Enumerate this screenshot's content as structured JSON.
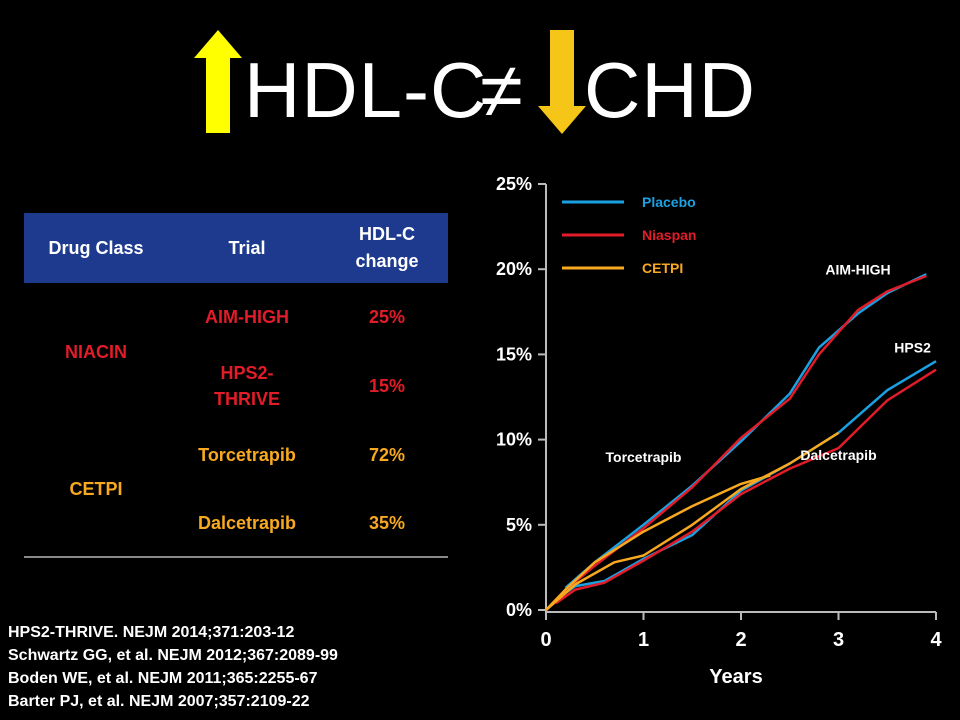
{
  "title": {
    "left": "HDL-C",
    "neq": "≠",
    "right": "CHD"
  },
  "colors": {
    "arrow": "#ffff00",
    "arrow_down": "#f5c518",
    "header_bg": "#1d3a8e",
    "niacin": "#e21c28",
    "cetp": "#f8a920",
    "placebo": "#1ba1e2",
    "niaspan": "#e21c28",
    "cetpi_line": "#f8a920"
  },
  "table": {
    "headers": [
      "Drug Class",
      "Trial",
      "HDL-C change"
    ],
    "groups": [
      {
        "drug_class": "NIACIN",
        "rows": [
          {
            "trial": "AIM-HIGH",
            "change": "25%"
          },
          {
            "trial": "HPS2-THRIVE",
            "change": "15%"
          }
        ]
      },
      {
        "drug_class": "CETPI",
        "rows": [
          {
            "trial": "Torcetrapib",
            "change": "72%"
          },
          {
            "trial": "Dalcetrapib",
            "change": "35%"
          }
        ]
      }
    ]
  },
  "references": [
    "HPS2-THRIVE. NEJM 2014;371:203-12",
    "Schwartz GG, et al. NEJM 2012;367:2089-99",
    "Boden WE, et al. NEJM 2011;365:2255-67",
    "Barter PJ, et al. NEJM 2007;357:2109-22"
  ],
  "chart_data": {
    "type": "line",
    "xlabel": "Years",
    "ylabel": "",
    "xlim": [
      0,
      4
    ],
    "ylim": [
      0,
      25
    ],
    "x_ticks": [
      "0",
      "1",
      "2",
      "3",
      "4"
    ],
    "y_ticks": [
      "0%",
      "5%",
      "10%",
      "15%",
      "20%",
      "25%"
    ],
    "legend": [
      "Placebo",
      "Niaspan",
      "CETPI"
    ],
    "legend_position": "top-left",
    "annotations": [
      {
        "text": "AIM-HIGH",
        "x": 3.2,
        "y": 19.7
      },
      {
        "text": "HPS2",
        "x": 3.76,
        "y": 15.1
      },
      {
        "text": "Torcetrapib",
        "x": 1.0,
        "y": 8.7
      },
      {
        "text": "Dalcetrapib",
        "x": 3.0,
        "y": 8.8
      }
    ],
    "series": [
      {
        "name": "Placebo",
        "trial": "AIM-HIGH",
        "color": "#1ba1e2",
        "points": [
          [
            0.2,
            1.3
          ],
          [
            0.5,
            2.8
          ],
          [
            1.0,
            5.0
          ],
          [
            1.5,
            7.3
          ],
          [
            2.0,
            9.9
          ],
          [
            2.5,
            12.7
          ],
          [
            2.8,
            15.4
          ],
          [
            3.2,
            17.4
          ],
          [
            3.5,
            18.6
          ],
          [
            3.9,
            19.7
          ]
        ]
      },
      {
        "name": "Niaspan",
        "trial": "AIM-HIGH",
        "color": "#e21c28",
        "points": [
          [
            0.2,
            1.2
          ],
          [
            0.5,
            2.6
          ],
          [
            1.0,
            4.8
          ],
          [
            1.5,
            7.2
          ],
          [
            2.0,
            10.1
          ],
          [
            2.5,
            12.4
          ],
          [
            2.8,
            15.0
          ],
          [
            3.2,
            17.6
          ],
          [
            3.5,
            18.7
          ],
          [
            3.9,
            19.6
          ]
        ]
      },
      {
        "name": "Placebo",
        "trial": "HPS2-THRIVE",
        "color": "#1ba1e2",
        "points": [
          [
            0.1,
            0.6
          ],
          [
            0.3,
            1.4
          ],
          [
            0.6,
            1.7
          ],
          [
            1.0,
            3.0
          ],
          [
            1.5,
            4.4
          ],
          [
            2.0,
            7.0
          ],
          [
            2.5,
            8.6
          ],
          [
            3.0,
            10.4
          ],
          [
            3.5,
            12.9
          ],
          [
            4.0,
            14.6
          ]
        ]
      },
      {
        "name": "Niaspan",
        "trial": "HPS2-THRIVE",
        "color": "#e21c28",
        "points": [
          [
            0.1,
            0.4
          ],
          [
            0.3,
            1.2
          ],
          [
            0.6,
            1.6
          ],
          [
            1.0,
            2.9
          ],
          [
            1.5,
            4.6
          ],
          [
            2.0,
            6.8
          ],
          [
            2.5,
            8.3
          ],
          [
            3.0,
            9.5
          ],
          [
            3.5,
            12.3
          ],
          [
            4.0,
            14.1
          ]
        ]
      },
      {
        "name": "CETPI",
        "trial": "Torcetrapib",
        "color": "#f8a920",
        "points": [
          [
            0.0,
            0.0
          ],
          [
            0.2,
            1.2
          ],
          [
            0.5,
            2.8
          ],
          [
            1.0,
            4.6
          ],
          [
            1.5,
            6.1
          ],
          [
            2.0,
            7.4
          ],
          [
            2.3,
            7.9
          ]
        ]
      },
      {
        "name": "CETPI",
        "trial": "Dalcetrapib",
        "color": "#f8a920",
        "points": [
          [
            0.0,
            0.0
          ],
          [
            0.3,
            1.5
          ],
          [
            0.7,
            2.8
          ],
          [
            1.0,
            3.2
          ],
          [
            1.5,
            5.0
          ],
          [
            2.0,
            7.1
          ],
          [
            2.5,
            8.6
          ],
          [
            3.0,
            10.4
          ]
        ]
      }
    ]
  }
}
